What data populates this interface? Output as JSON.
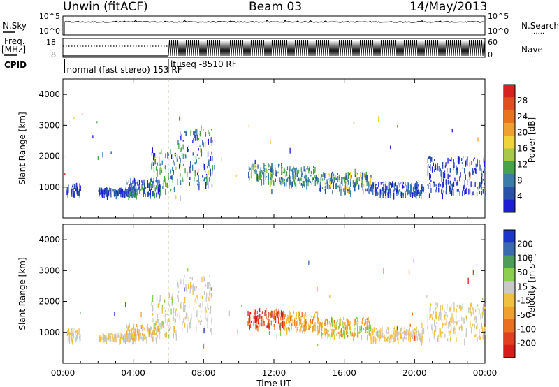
{
  "header": {
    "title": "Unwin (fitACF)",
    "beam": "Beam 03",
    "date": "14/May/2013"
  },
  "noise_panel": {
    "left_label": "N.Sky",
    "left_ticks": [
      "10^5",
      "10^0"
    ],
    "right_ticks": [
      "10^5",
      "10^0"
    ],
    "right_label": "N.Search",
    "right_marker": "......"
  },
  "freq_panel": {
    "label_top": "Freq.",
    "label_unit": "[MHz]",
    "left_ticks": [
      "18",
      "8"
    ],
    "right_ticks": [
      "60",
      "0"
    ],
    "right_label": "Nave",
    "right_marker": "....",
    "cpid_label": "CPID",
    "cpid_modes": [
      {
        "text": "normal (fast stereo) 153 RF",
        "start_hour": 0.1
      },
      {
        "text": "ltuseq -8510 RF",
        "start_hour": 6.0
      }
    ]
  },
  "chart_data": [
    {
      "type": "scatter",
      "name": "power",
      "ylabel": "Slant Range [km]",
      "xlabel": "",
      "ylim": [
        0,
        4500
      ],
      "xlim": [
        0,
        24
      ],
      "yticks": [
        "1000",
        "2000",
        "3000",
        "4000"
      ],
      "colorbar": {
        "label": "Power [dB]",
        "ticks": [
          "4",
          "8",
          "12",
          "16",
          "20",
          "24",
          "28"
        ],
        "colors": [
          "#1d1dd6",
          "#2a52a8",
          "#3a7da8",
          "#46a34a",
          "#a8c84a",
          "#f0d23a",
          "#f0a030",
          "#e8741e",
          "#e0501e",
          "#d82222"
        ]
      },
      "clusters": [
        {
          "h0": 0.2,
          "h1": 1.0,
          "r0": 800,
          "r1": 1150,
          "c": [
            0,
            1
          ]
        },
        {
          "h0": 2.0,
          "h1": 4.2,
          "r0": 800,
          "r1": 1000,
          "c": [
            0,
            1,
            2
          ]
        },
        {
          "h0": 3.5,
          "h1": 5.5,
          "r0": 800,
          "r1": 1300,
          "c": [
            0,
            1,
            2,
            3
          ]
        },
        {
          "h0": 5.0,
          "h1": 6.5,
          "r0": 900,
          "r1": 2300,
          "c": [
            0,
            1,
            2,
            3,
            4
          ]
        },
        {
          "h0": 6.5,
          "h1": 8.5,
          "r0": 1100,
          "r1": 2900,
          "c": [
            0,
            1,
            2,
            3
          ]
        },
        {
          "h0": 10.5,
          "h1": 12.5,
          "r0": 1200,
          "r1": 1800,
          "c": [
            1,
            2,
            3,
            4
          ]
        },
        {
          "h0": 12.5,
          "h1": 14.5,
          "r0": 1100,
          "r1": 1700,
          "c": [
            1,
            2,
            3
          ]
        },
        {
          "h0": 14.5,
          "h1": 17.5,
          "r0": 900,
          "r1": 1500,
          "c": [
            1,
            2,
            3,
            5
          ]
        },
        {
          "h0": 17.5,
          "h1": 20.5,
          "r0": 800,
          "r1": 1200,
          "c": [
            0,
            1,
            2
          ]
        },
        {
          "h0": 20.7,
          "h1": 24.0,
          "r0": 800,
          "r1": 2000,
          "c": [
            0,
            1
          ]
        }
      ]
    },
    {
      "type": "scatter",
      "name": "velocity",
      "ylabel": "Slant Range [km]",
      "xlabel": "Time UT",
      "ylim": [
        0,
        4500
      ],
      "xlim": [
        0,
        24
      ],
      "yticks": [
        "1000",
        "2000",
        "3000",
        "4000"
      ],
      "xticks": [
        "00:00",
        "04:00",
        "08:00",
        "12:00",
        "16:00",
        "20:00",
        "00:00"
      ],
      "colorbar": {
        "label": "Velocity [m s⁻¹]",
        "ticks": [
          "200",
          "100",
          "50",
          "15",
          "-15",
          "-50",
          "-100",
          "-200"
        ],
        "colors": [
          "#1d35c8",
          "#3c6ab0",
          "#4e9c5a",
          "#8ccf4e",
          "#c8c8c8",
          "#f0c040",
          "#f0a030",
          "#e87020",
          "#e04020",
          "#d81c1c"
        ]
      },
      "clusters": [
        {
          "h0": 0.2,
          "h1": 1.0,
          "r0": 800,
          "r1": 1150,
          "c": [
            4,
            5
          ]
        },
        {
          "h0": 2.0,
          "h1": 4.2,
          "r0": 800,
          "r1": 1000,
          "c": [
            4,
            5
          ]
        },
        {
          "h0": 3.5,
          "h1": 5.5,
          "r0": 800,
          "r1": 1300,
          "c": [
            4,
            5,
            6
          ]
        },
        {
          "h0": 5.0,
          "h1": 6.5,
          "r0": 900,
          "r1": 2300,
          "c": [
            4,
            5,
            3
          ]
        },
        {
          "h0": 6.5,
          "h1": 8.5,
          "r0": 1100,
          "r1": 2900,
          "c": [
            4,
            4,
            5
          ]
        },
        {
          "h0": 10.5,
          "h1": 12.5,
          "r0": 1200,
          "r1": 1800,
          "c": [
            8,
            9,
            7
          ]
        },
        {
          "h0": 12.5,
          "h1": 14.5,
          "r0": 1100,
          "r1": 1700,
          "c": [
            7,
            6,
            5
          ]
        },
        {
          "h0": 14.5,
          "h1": 17.5,
          "r0": 900,
          "r1": 1500,
          "c": [
            6,
            7,
            5,
            3
          ]
        },
        {
          "h0": 17.5,
          "h1": 20.5,
          "r0": 800,
          "r1": 1200,
          "c": [
            4,
            5
          ]
        },
        {
          "h0": 20.7,
          "h1": 24.0,
          "r0": 800,
          "r1": 2000,
          "c": [
            4,
            5
          ]
        }
      ]
    }
  ]
}
